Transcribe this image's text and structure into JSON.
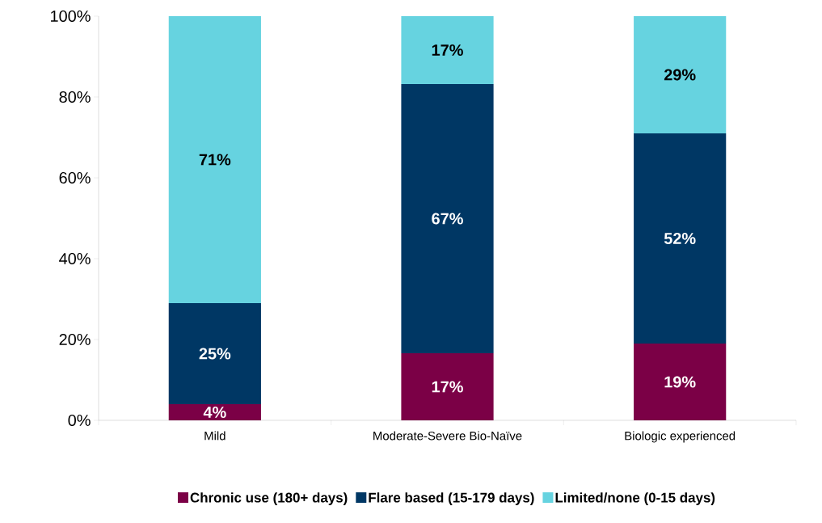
{
  "chart_data": {
    "type": "bar",
    "stacked": true,
    "categories": [
      "Mild",
      "Moderate-Severe Bio-Naïve",
      "Biologic experienced"
    ],
    "series": [
      {
        "name": "Chronic use (180+ days)",
        "color": "#7b0046",
        "values": [
          4,
          16.6,
          19
        ],
        "value_labels": [
          "4%",
          "17%",
          "19%"
        ]
      },
      {
        "name": "Flare based (15-179 days)",
        "color": "#003764",
        "values": [
          25,
          66.6,
          52
        ],
        "value_labels": [
          "25%",
          "67%",
          "52%"
        ]
      },
      {
        "name": "Limited/none (0-15 days)",
        "color": "#66d3e0",
        "values": [
          71,
          16.8,
          29
        ],
        "value_labels": [
          "71%",
          "17%",
          "29%"
        ]
      }
    ],
    "ylim": [
      0,
      100
    ],
    "yticks": [
      {
        "value": 0,
        "label": "0%"
      },
      {
        "value": 20,
        "label": "20%"
      },
      {
        "value": 40,
        "label": "40%"
      },
      {
        "value": 60,
        "label": "60%"
      },
      {
        "value": 80,
        "label": "80%"
      },
      {
        "value": 100,
        "label": "100%"
      }
    ],
    "grid": false,
    "legend": "bottom"
  }
}
